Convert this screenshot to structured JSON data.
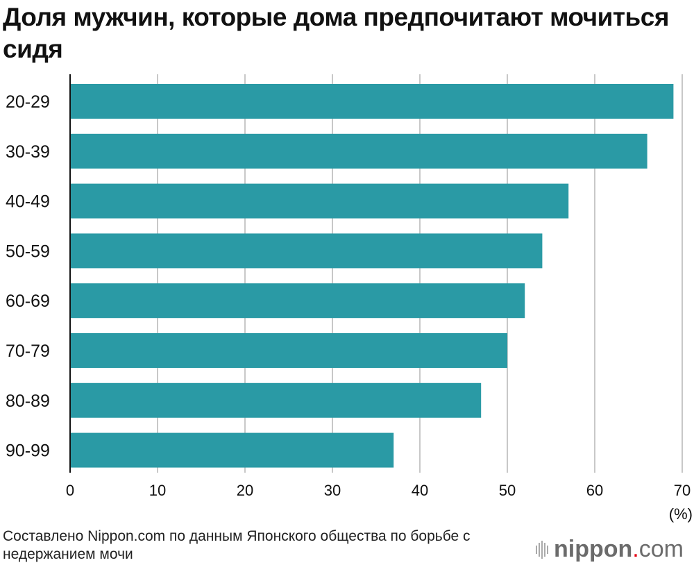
{
  "chart_data": {
    "type": "bar",
    "orientation": "horizontal",
    "title": "Доля мужчин, которые дома предпочитают мочиться сидя",
    "categories": [
      "20-29",
      "30-39",
      "40-49",
      "50-59",
      "60-69",
      "70-79",
      "80-89",
      "90-99"
    ],
    "values": [
      69,
      66,
      57,
      54,
      52,
      50,
      47,
      37
    ],
    "xlabel": "(%)",
    "xlim": [
      0,
      70
    ],
    "xticks": [
      0,
      10,
      20,
      30,
      40,
      50,
      60,
      70
    ],
    "grid": true,
    "bar_color": "#2a9aa5"
  },
  "source": "Составлено Nippon.com по данным Японского общества по борьбе с недержанием мочи",
  "logo": {
    "text": "nippon.com"
  }
}
